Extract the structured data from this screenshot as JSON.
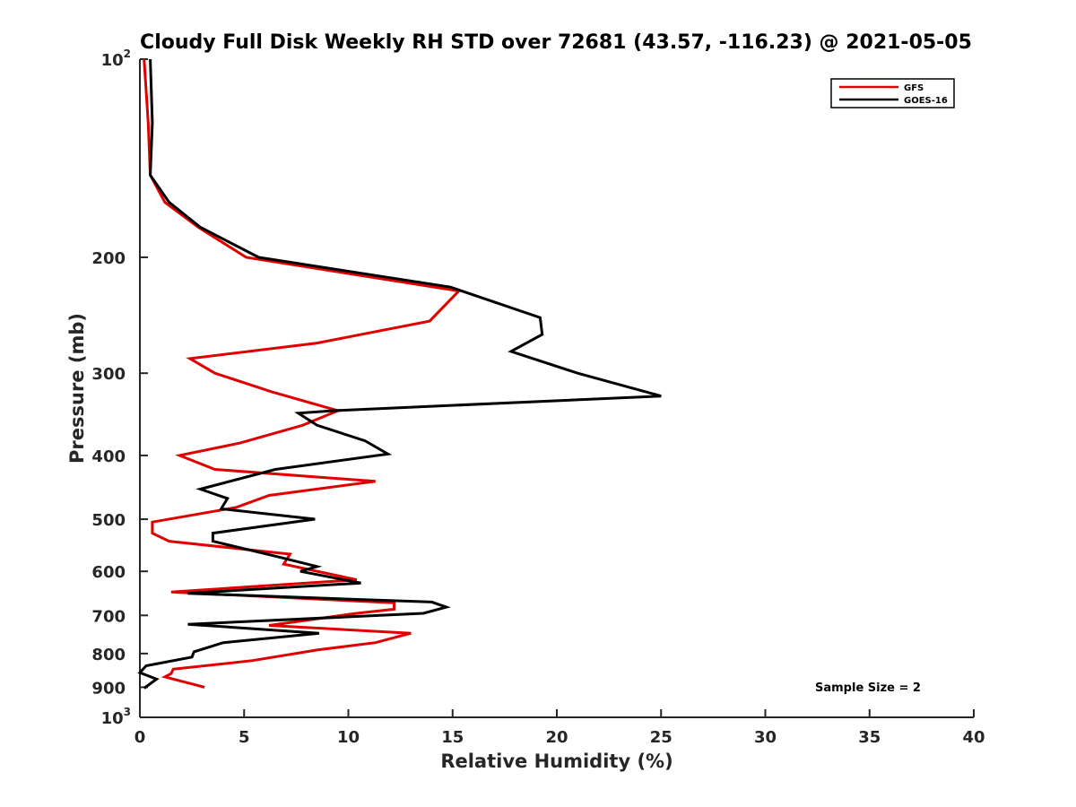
{
  "chart_data": {
    "type": "line",
    "title": "Cloudy Full Disk Weekly RH STD over 72681 (43.57, -116.23) @ 2021-05-05",
    "xlabel": "Relative Humidity (%)",
    "ylabel": "Pressure (mb)",
    "xlim": [
      0,
      40
    ],
    "ylim": [
      100,
      1000
    ],
    "y_scale": "log",
    "y_reversed": true,
    "grid": false,
    "legend_position": "top-right",
    "x_ticks": [
      "0",
      "5",
      "10",
      "15",
      "20",
      "25",
      "30",
      "35",
      "40"
    ],
    "y_ticks": [
      {
        "value": 100,
        "base": "10",
        "exp": "2"
      },
      {
        "value": 200,
        "label": "200"
      },
      {
        "value": 300,
        "label": "300"
      },
      {
        "value": 400,
        "label": "400"
      },
      {
        "value": 500,
        "label": "500"
      },
      {
        "value": 600,
        "label": "600"
      },
      {
        "value": 700,
        "label": "700"
      },
      {
        "value": 800,
        "label": "800"
      },
      {
        "value": 900,
        "label": "900"
      },
      {
        "value": 1000,
        "base": "10",
        "exp": "3"
      }
    ],
    "annotation": "Sample Size = 2",
    "series": [
      {
        "name": "GFS",
        "color": "#e00000",
        "points": [
          [
            0.2,
            100
          ],
          [
            0.4,
            125
          ],
          [
            0.5,
            150
          ],
          [
            1.2,
            165
          ],
          [
            2.8,
            180
          ],
          [
            5.1,
            200
          ],
          [
            15.3,
            225
          ],
          [
            13.9,
            250
          ],
          [
            8.5,
            270
          ],
          [
            2.4,
            285
          ],
          [
            3.6,
            300
          ],
          [
            6.3,
            320
          ],
          [
            9.5,
            342
          ],
          [
            7.8,
            360
          ],
          [
            4.8,
            383
          ],
          [
            1.9,
            400
          ],
          [
            3.6,
            420
          ],
          [
            11.3,
            438
          ],
          [
            6.2,
            460
          ],
          [
            4.6,
            480
          ],
          [
            0.6,
            505
          ],
          [
            0.6,
            525
          ],
          [
            1.4,
            540
          ],
          [
            7.2,
            565
          ],
          [
            6.9,
            585
          ],
          [
            10.4,
            618
          ],
          [
            1.5,
            645
          ],
          [
            12.2,
            670
          ],
          [
            12.2,
            685
          ],
          [
            10.4,
            695
          ],
          [
            6.2,
            725
          ],
          [
            13.0,
            745
          ],
          [
            11.3,
            770
          ],
          [
            8.5,
            790
          ],
          [
            5.4,
            820
          ],
          [
            1.6,
            845
          ],
          [
            1.5,
            858
          ],
          [
            1.2,
            868
          ],
          [
            3.1,
            900
          ]
        ]
      },
      {
        "name": "GOES-16",
        "color": "#000000",
        "points": [
          [
            0.5,
            100
          ],
          [
            0.6,
            125
          ],
          [
            0.5,
            150
          ],
          [
            1.4,
            165
          ],
          [
            2.9,
            180
          ],
          [
            5.7,
            200
          ],
          [
            14.9,
            222
          ],
          [
            19.2,
            247
          ],
          [
            19.3,
            262
          ],
          [
            17.8,
            278
          ],
          [
            21.0,
            300
          ],
          [
            25.0,
            325
          ],
          [
            9.3,
            342
          ],
          [
            7.6,
            345
          ],
          [
            8.5,
            360
          ],
          [
            10.8,
            380
          ],
          [
            11.9,
            398
          ],
          [
            6.5,
            420
          ],
          [
            2.9,
            450
          ],
          [
            4.2,
            465
          ],
          [
            3.9,
            482
          ],
          [
            8.4,
            500
          ],
          [
            3.5,
            525
          ],
          [
            3.5,
            540
          ],
          [
            6.6,
            570
          ],
          [
            8.5,
            590
          ],
          [
            7.7,
            600
          ],
          [
            10.6,
            625
          ],
          [
            2.3,
            648
          ],
          [
            14.0,
            668
          ],
          [
            14.7,
            680
          ],
          [
            13.6,
            695
          ],
          [
            2.3,
            722
          ],
          [
            8.6,
            745
          ],
          [
            4.0,
            770
          ],
          [
            2.6,
            795
          ],
          [
            2.5,
            810
          ],
          [
            0.3,
            835
          ],
          [
            0.0,
            855
          ],
          [
            0.8,
            875
          ],
          [
            0.2,
            903
          ]
        ]
      }
    ]
  }
}
